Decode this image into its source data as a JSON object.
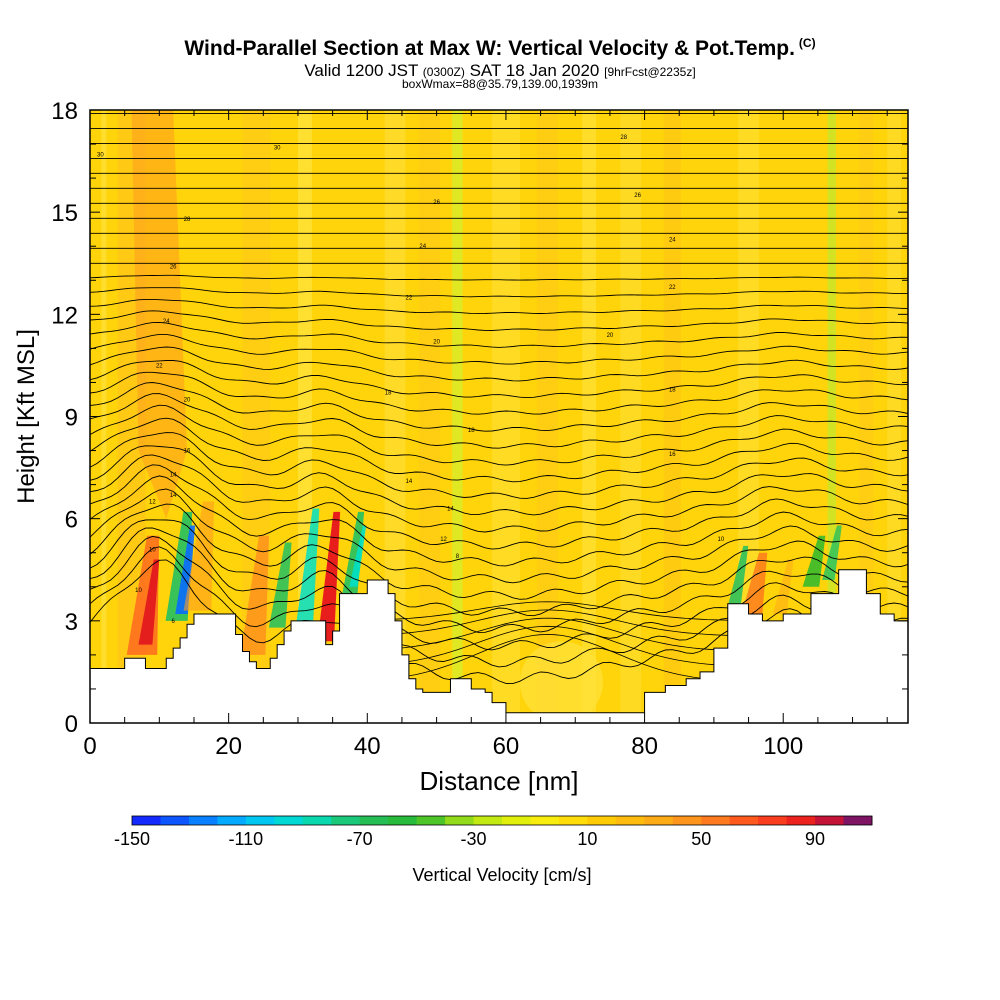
{
  "header": {
    "title": "Wind-Parallel Section at Max W: Vertical Velocity & Pot.Temp.",
    "copyright": "(C)",
    "valid_prefix": "Valid 1200 JST",
    "valid_z": "(0300Z)",
    "valid_date": "SAT 18 Jan 2020",
    "forecast": "[9hrFcst@2235z]",
    "box_info": "boxWmax=88@35.79,139.00,1939m"
  },
  "chart_data": {
    "type": "heatmap",
    "xlabel": "Distance [nm]",
    "ylabel": "Height [Kft MSL]",
    "xlim": [
      0,
      118
    ],
    "ylim": [
      0,
      18
    ],
    "xticks": [
      0,
      20,
      40,
      60,
      80,
      100
    ],
    "yticks": [
      0,
      3,
      6,
      9,
      12,
      15,
      18
    ],
    "colorbar": {
      "label": "Vertical Velocity [cm/s]",
      "tick_labels": [
        "-150",
        "-110",
        "-70",
        "-30",
        "10",
        "50",
        "90"
      ],
      "min": -150,
      "max": 110,
      "step": 10
    },
    "terrain_profile": {
      "x": [
        0,
        4,
        5,
        8,
        10,
        11,
        12,
        13,
        14,
        15,
        20,
        21,
        22,
        23,
        24,
        25,
        26,
        27,
        28,
        29,
        30,
        33,
        34,
        35,
        36,
        38,
        40,
        42,
        43,
        44,
        45,
        46,
        47,
        48,
        50,
        52,
        55,
        57,
        58,
        60,
        62,
        64,
        67,
        70,
        75,
        77,
        80,
        83,
        86,
        88,
        90,
        92,
        95,
        97,
        98,
        100,
        102,
        104,
        106,
        108,
        110,
        112,
        114,
        116,
        118
      ],
      "y": [
        1.6,
        1.6,
        1.9,
        1.6,
        1.6,
        1.9,
        2.2,
        2.5,
        2.9,
        3.2,
        3.2,
        2.6,
        2.1,
        1.8,
        1.6,
        1.6,
        1.9,
        2.3,
        2.7,
        3.0,
        3.0,
        3.0,
        2.3,
        2.7,
        3.8,
        3.8,
        4.2,
        4.2,
        3.8,
        3.0,
        2.0,
        1.3,
        1.0,
        0.9,
        0.9,
        1.3,
        1.0,
        0.9,
        0.6,
        0.3,
        0.3,
        0.3,
        0.3,
        0.3,
        0.3,
        0.3,
        0.9,
        1.1,
        1.3,
        1.5,
        2.2,
        3.5,
        3.2,
        3.0,
        3.0,
        3.2,
        3.2,
        3.8,
        3.8,
        4.5,
        4.5,
        3.8,
        3.2,
        3.0,
        2.6
      ]
    },
    "theta_contour_labels": [
      "30",
      "28",
      "26",
      "24",
      "22",
      "20",
      "18",
      "16",
      "14",
      "12",
      "10",
      "8",
      "6"
    ]
  }
}
